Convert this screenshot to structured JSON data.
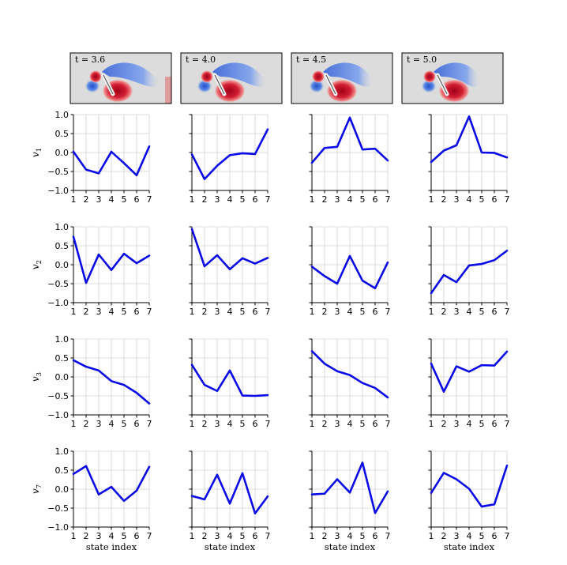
{
  "flow_panels": [
    {
      "label": "t = 3.6"
    },
    {
      "label": "t = 4.0"
    },
    {
      "label": "t = 4.5"
    },
    {
      "label": "t = 5.0"
    }
  ],
  "colors": {
    "line": "#0a0ae6",
    "grid": "#d0d0d0",
    "flow_bg": "#dcdcdc",
    "vortex_red": "#c8152a",
    "vortex_blue": "#3b6fd8"
  },
  "chart_data": {
    "type": "line",
    "xlabel": "state index",
    "x": [
      1,
      2,
      3,
      4,
      5,
      6,
      7
    ],
    "xticks": [
      "1",
      "2",
      "3",
      "4",
      "5",
      "6",
      "7"
    ],
    "ylim": [
      -1.0,
      1.0
    ],
    "yticks": [
      "1.0",
      "0.5",
      "0.0",
      "−0.5",
      "−1.0"
    ],
    "rows": [
      {
        "name": "v",
        "subscript": "1",
        "series": [
          [
            0.02,
            -0.45,
            -0.55,
            0.02,
            -0.28,
            -0.6,
            0.16
          ],
          [
            -0.05,
            -0.7,
            -0.35,
            -0.07,
            -0.02,
            -0.04,
            0.61
          ],
          [
            -0.27,
            0.12,
            0.15,
            0.92,
            0.08,
            0.1,
            -0.21
          ],
          [
            -0.25,
            0.05,
            0.19,
            0.95,
            0.0,
            -0.01,
            -0.13
          ]
        ]
      },
      {
        "name": "v",
        "subscript": "2",
        "series": [
          [
            0.74,
            -0.48,
            0.27,
            -0.14,
            0.29,
            0.04,
            0.24
          ],
          [
            0.94,
            -0.04,
            0.25,
            -0.12,
            0.17,
            0.03,
            0.18
          ],
          [
            -0.05,
            -0.3,
            -0.5,
            0.23,
            -0.42,
            -0.62,
            0.06
          ],
          [
            -0.75,
            -0.27,
            -0.46,
            -0.02,
            0.02,
            0.12,
            0.37
          ]
        ]
      },
      {
        "name": "v",
        "subscript": "3",
        "series": [
          [
            0.44,
            0.27,
            0.17,
            -0.11,
            -0.21,
            -0.42,
            -0.7
          ],
          [
            0.32,
            -0.21,
            -0.37,
            0.17,
            -0.49,
            -0.5,
            -0.48
          ],
          [
            0.68,
            0.35,
            0.15,
            0.05,
            -0.16,
            -0.29,
            -0.54
          ],
          [
            0.35,
            -0.39,
            0.28,
            0.14,
            0.31,
            0.3,
            0.67
          ]
        ]
      },
      {
        "name": "v",
        "subscript": "7",
        "series": [
          [
            0.4,
            0.61,
            -0.14,
            0.06,
            -0.31,
            -0.04,
            0.59
          ],
          [
            -0.18,
            -0.27,
            0.38,
            -0.38,
            0.42,
            -0.64,
            -0.19
          ],
          [
            -0.14,
            -0.12,
            0.26,
            -0.09,
            0.7,
            -0.63,
            -0.06
          ],
          [
            -0.1,
            0.43,
            0.26,
            0.01,
            -0.46,
            -0.4,
            0.62
          ]
        ]
      }
    ]
  }
}
